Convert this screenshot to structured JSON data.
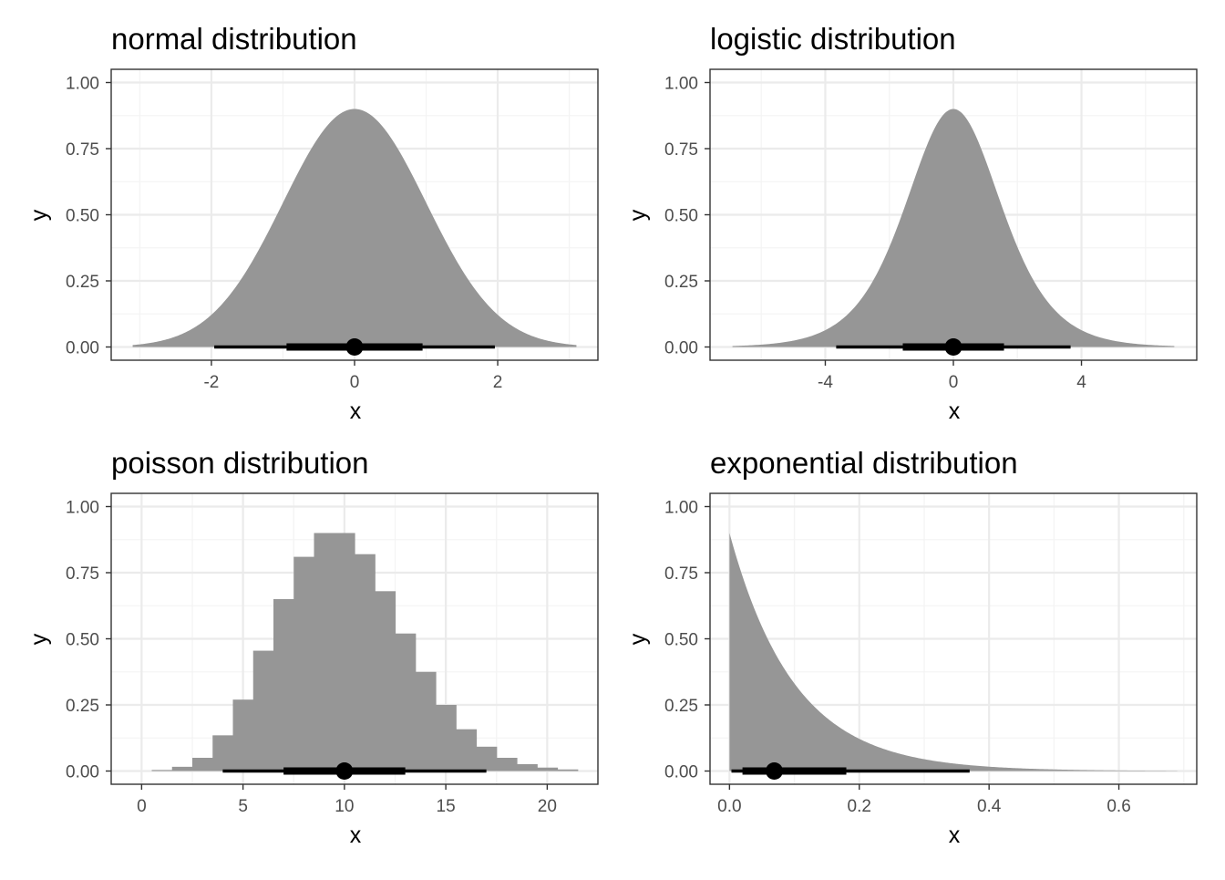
{
  "colors": {
    "fill": "#969696",
    "interval": "#000000",
    "grid_major": "#ebebeb",
    "grid_minor": "#f4f4f4",
    "panel_border": "#333333",
    "tick_text": "#4d4d4d"
  },
  "chart_data": [
    {
      "type": "area",
      "title": "normal distribution",
      "xlabel": "x",
      "ylabel": "y",
      "xlim": [
        -3.4,
        3.4
      ],
      "ylim": [
        -0.05,
        1.05
      ],
      "x_ticks": [
        -2,
        0,
        2
      ],
      "x_tick_labels": [
        "-2",
        "0",
        "2"
      ],
      "y_ticks": [
        0,
        0.25,
        0.5,
        0.75,
        1
      ],
      "y_tick_labels": [
        "0.00",
        "0.25",
        "0.50",
        "0.75",
        "1.00"
      ],
      "grid": true,
      "density": {
        "family": "normal",
        "mean": 0,
        "sd": 1,
        "x_range": [
          -3.1,
          3.1
        ],
        "peak_height": 0.9
      },
      "point": 0,
      "interval_thick": [
        -0.95,
        0.95
      ],
      "interval_thin": [
        -1.96,
        1.96
      ]
    },
    {
      "type": "area",
      "title": "logistic distribution",
      "xlabel": "x",
      "ylabel": "y",
      "xlim": [
        -7.6,
        7.6
      ],
      "ylim": [
        -0.05,
        1.05
      ],
      "x_ticks": [
        -4,
        0,
        4
      ],
      "x_tick_labels": [
        "-4",
        "0",
        "4"
      ],
      "y_ticks": [
        0,
        0.25,
        0.5,
        0.75,
        1
      ],
      "y_tick_labels": [
        "0.00",
        "0.25",
        "0.50",
        "0.75",
        "1.00"
      ],
      "grid": true,
      "density": {
        "family": "logistic",
        "location": 0,
        "scale": 1,
        "x_range": [
          -6.9,
          6.9
        ],
        "peak_height": 0.9
      },
      "point": 0,
      "interval_thick": [
        -1.58,
        1.58
      ],
      "interval_thin": [
        -3.66,
        3.66
      ]
    },
    {
      "type": "bar",
      "title": "poisson distribution",
      "xlabel": "x",
      "ylabel": "y",
      "xlim": [
        -1.5,
        22.5
      ],
      "ylim": [
        -0.05,
        1.05
      ],
      "x_ticks": [
        0,
        5,
        10,
        15,
        20
      ],
      "x_tick_labels": [
        "0",
        "5",
        "10",
        "15",
        "20"
      ],
      "y_ticks": [
        0,
        0.25,
        0.5,
        0.75,
        1
      ],
      "y_tick_labels": [
        "0.00",
        "0.25",
        "0.50",
        "0.75",
        "1.00"
      ],
      "grid": true,
      "categories": [
        1,
        2,
        3,
        4,
        5,
        6,
        7,
        8,
        9,
        10,
        11,
        12,
        13,
        14,
        15,
        16,
        17,
        18,
        19,
        20,
        21
      ],
      "values": [
        0.004,
        0.016,
        0.05,
        0.135,
        0.27,
        0.455,
        0.65,
        0.81,
        0.9,
        0.9,
        0.82,
        0.68,
        0.52,
        0.375,
        0.25,
        0.158,
        0.092,
        0.05,
        0.026,
        0.013,
        0.006
      ],
      "point": 10,
      "interval_thick": [
        7,
        13
      ],
      "interval_thin": [
        4,
        17
      ]
    },
    {
      "type": "area",
      "title": "exponential distribution",
      "xlabel": "x",
      "ylabel": "y",
      "xlim": [
        -0.03,
        0.72
      ],
      "ylim": [
        -0.05,
        1.05
      ],
      "x_ticks": [
        0,
        0.2,
        0.4,
        0.6
      ],
      "x_tick_labels": [
        "0.0",
        "0.2",
        "0.4",
        "0.6"
      ],
      "y_ticks": [
        0,
        0.25,
        0.5,
        0.75,
        1
      ],
      "y_tick_labels": [
        "0.00",
        "0.25",
        "0.50",
        "0.75",
        "1.00"
      ],
      "grid": true,
      "density": {
        "family": "exponential",
        "rate": 10,
        "x_range": [
          0,
          0.69
        ],
        "peak_height": 0.9
      },
      "point": 0.069,
      "interval_thick": [
        0.02,
        0.18
      ],
      "interval_thin": [
        0.003,
        0.37
      ]
    }
  ]
}
